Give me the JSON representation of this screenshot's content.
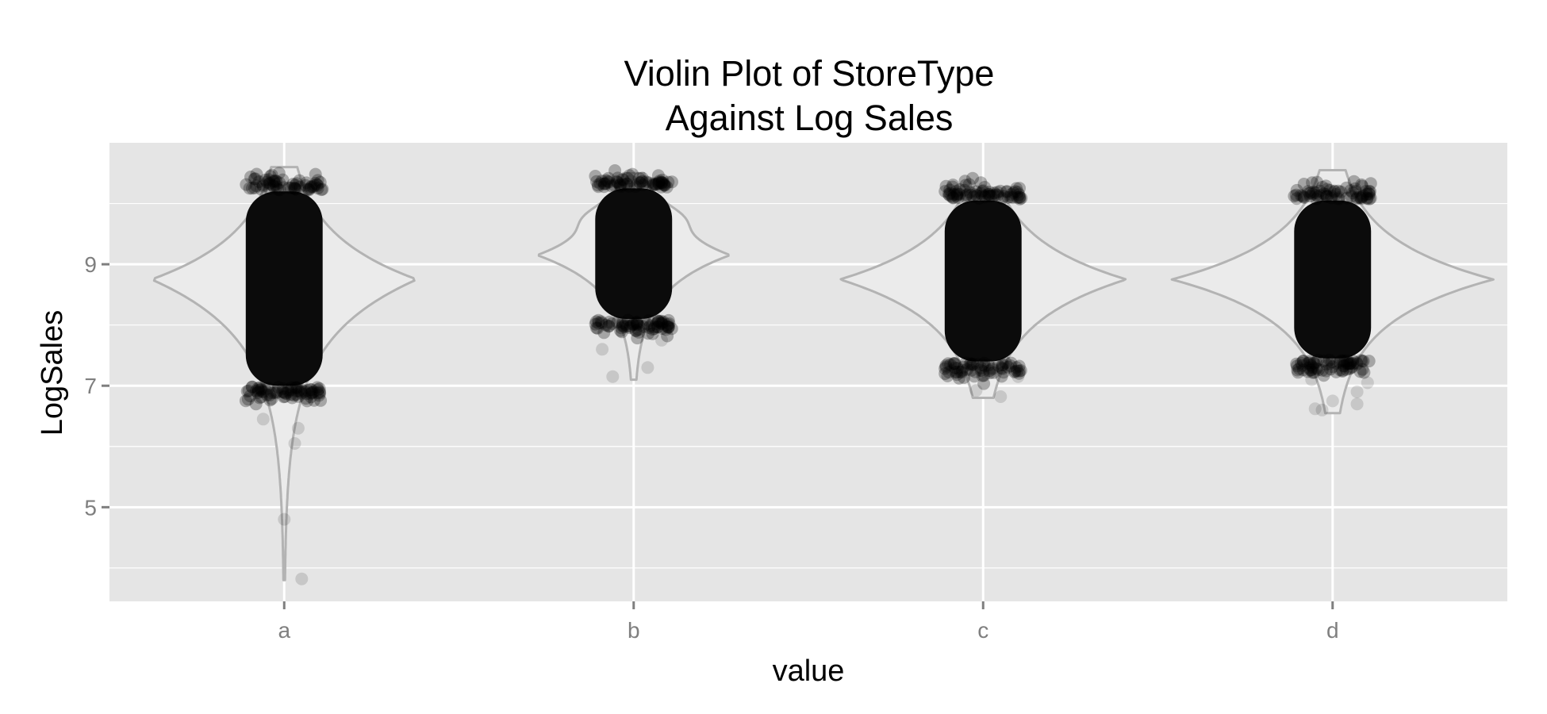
{
  "chart_data": {
    "type": "violin",
    "title": [
      "Violin Plot of StoreType",
      "Against Log Sales"
    ],
    "xlabel": "value",
    "ylabel": "LogSales",
    "categories": [
      "a",
      "b",
      "c",
      "d"
    ],
    "ylim": [
      3.45,
      11.0
    ],
    "yticks": [
      5,
      7,
      9
    ],
    "yticks_minor": [
      4,
      6,
      8,
      10
    ],
    "grid": true,
    "colors": {
      "panel": "#e5e5e5",
      "grid": "#ffffff",
      "violin_outline": "#b3b3b3",
      "violin_fill": "#ebebeb",
      "points": "#000000"
    },
    "violins": [
      {
        "category": "a",
        "min": 3.8,
        "max": 10.6,
        "peak": 8.75,
        "core": [
          7.0,
          10.2
        ],
        "half_width": 0.38
      },
      {
        "category": "b",
        "min": 7.1,
        "max": 10.5,
        "peak": 9.15,
        "core": [
          8.1,
          10.25
        ],
        "half_width": 0.3
      },
      {
        "category": "c",
        "min": 6.8,
        "max": 10.2,
        "peak": 8.75,
        "core": [
          7.4,
          10.05
        ],
        "half_width": 0.41
      },
      {
        "category": "d",
        "min": 6.55,
        "max": 10.55,
        "peak": 8.75,
        "core": [
          7.45,
          10.05
        ],
        "half_width": 0.46
      }
    ],
    "outliers": [
      {
        "category": "a",
        "points": [
          [
            0.0,
            4.8
          ],
          [
            0.05,
            3.82
          ],
          [
            0.03,
            6.05
          ],
          [
            -0.06,
            6.45
          ],
          [
            0.04,
            6.3
          ]
        ]
      },
      {
        "category": "b",
        "points": [
          [
            -0.06,
            7.15
          ],
          [
            0.04,
            7.3
          ],
          [
            -0.09,
            7.6
          ],
          [
            0.08,
            7.75
          ]
        ]
      },
      {
        "category": "c",
        "points": [
          [
            -0.02,
            6.92
          ],
          [
            0.05,
            6.82
          ],
          [
            -0.09,
            7.25
          ],
          [
            0.1,
            7.15
          ]
        ]
      },
      {
        "category": "d",
        "points": [
          [
            -0.05,
            6.62
          ],
          [
            -0.03,
            6.6
          ],
          [
            0.0,
            6.75
          ],
          [
            0.07,
            6.7
          ],
          [
            0.07,
            6.9
          ],
          [
            -0.06,
            7.1
          ],
          [
            0.1,
            7.05
          ]
        ]
      }
    ]
  }
}
